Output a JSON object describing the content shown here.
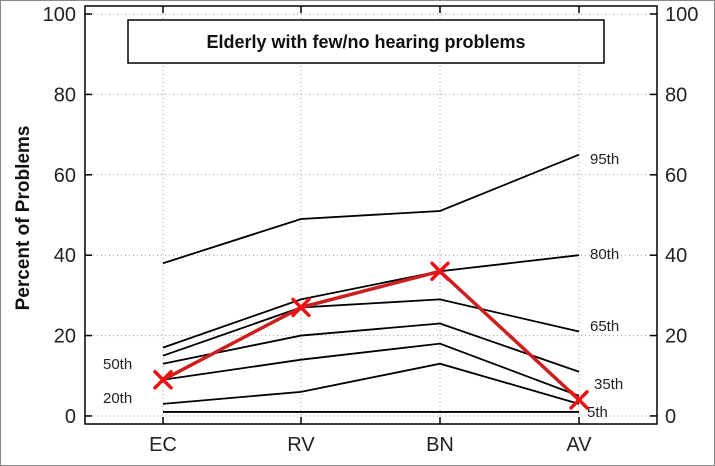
{
  "chart_data": {
    "type": "line",
    "title": "Elderly with few/no hearing problems",
    "xlabel": "",
    "ylabel": "Percent of Problems",
    "categories": [
      "EC",
      "RV",
      "BN",
      "AV"
    ],
    "ylim": [
      -2,
      102
    ],
    "yticks": [
      "0",
      "20",
      "40",
      "60",
      "80",
      "100"
    ],
    "grid": true,
    "percentiles": [
      {
        "label": "95th",
        "values": [
          38,
          49,
          51,
          65
        ]
      },
      {
        "label": "80th",
        "values": [
          17,
          29,
          36,
          40
        ]
      },
      {
        "label": "65th",
        "values": [
          15,
          27,
          29,
          21
        ]
      },
      {
        "label": "50th",
        "values": [
          13,
          20,
          23,
          11
        ]
      },
      {
        "label": "35th",
        "values": [
          9,
          14,
          18,
          5
        ]
      },
      {
        "label": "20th",
        "values": [
          3,
          6,
          13,
          3
        ]
      },
      {
        "label": "5th",
        "values": [
          1,
          1,
          1,
          1
        ]
      }
    ],
    "highlight": {
      "values": [
        9,
        27,
        36,
        4
      ],
      "color": "#cc1f1f",
      "marker": "x"
    }
  }
}
